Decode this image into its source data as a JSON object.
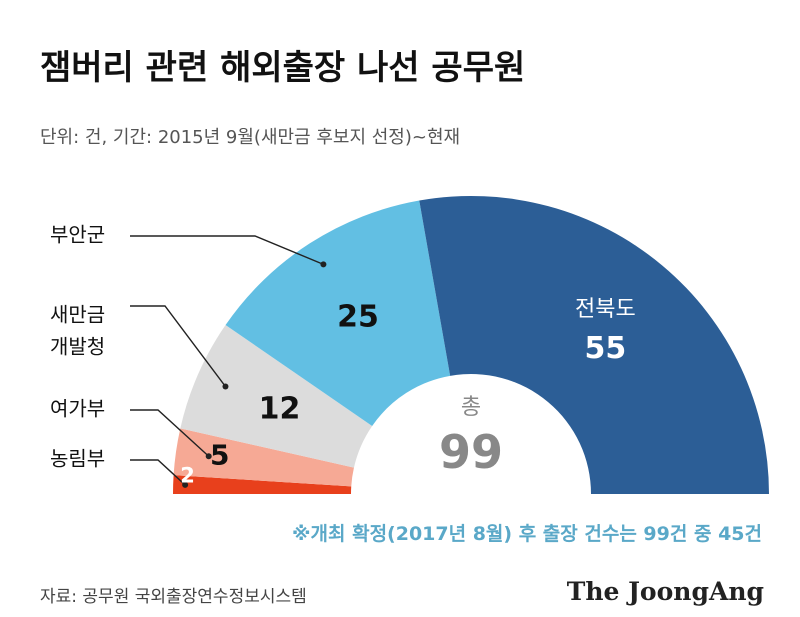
{
  "title": "잼버리 관련 해외출장 나선 공무원",
  "subtitle": "단위: 건, 기간: 2015년 9월(새만금 후보지 선정)~현재",
  "note": "※개최 확정(2017년 8월) 후 출장 건수는 99건 중 45건",
  "source": "자료: 공무원 국외출장연수정보시스템",
  "brand": "The JoongAng",
  "chart_data": {
    "type": "pie",
    "variant": "half-donut",
    "total_label": "총",
    "total_value": 99,
    "slices": [
      {
        "label": "농림부",
        "value": 2,
        "color": "#e8401c"
      },
      {
        "label": "여가부",
        "value": 5,
        "color": "#f6a995"
      },
      {
        "label": "새만금 개발청",
        "value": 12,
        "color": "#dcdcdc"
      },
      {
        "label": "부안군",
        "value": 25,
        "color": "#62bfe3"
      },
      {
        "label": "전북도",
        "value": 55,
        "color": "#2c5e96"
      }
    ]
  }
}
